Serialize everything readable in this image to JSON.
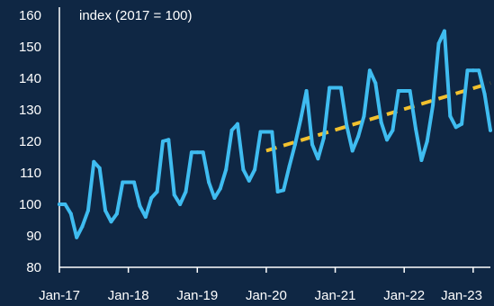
{
  "chart_data": {
    "type": "line",
    "title": "",
    "unit_label": "index (2017 = 100)",
    "xlabel": "",
    "ylabel": "",
    "ylim": [
      80,
      160
    ],
    "y_ticks": [
      "80",
      "90",
      "100",
      "110",
      "120",
      "130",
      "140",
      "150",
      "160"
    ],
    "x_ticks": [
      "Jan-17",
      "Jan-18",
      "Jan-19",
      "Jan-20",
      "Jan-21",
      "Jan-22",
      "Jan-23"
    ],
    "grid": false,
    "legend": "none",
    "colors": {
      "background": "#0f2744",
      "series": "#3fbcf0",
      "trend": "#f2c12e",
      "axis": "#ffffff"
    },
    "series": [
      {
        "values": [
          100,
          100,
          97,
          89.5,
          93,
          98,
          113.5,
          111.5,
          98,
          94.5,
          97,
          107,
          107,
          107,
          99.5,
          96,
          102,
          104,
          120,
          120.5,
          103,
          100,
          104,
          116.5,
          116.5,
          116.5,
          107,
          102,
          105,
          111,
          123.5,
          125.5,
          111,
          107.5,
          111,
          123,
          123,
          123,
          104,
          104.5,
          112,
          119,
          127,
          136,
          119,
          114.5,
          121,
          137,
          137,
          137,
          125,
          117,
          121.5,
          128,
          142.5,
          138.5,
          126,
          120.5,
          123.5,
          136,
          136,
          136,
          124,
          114,
          120,
          131.5,
          151,
          155,
          128,
          124.5,
          125.5,
          142.5,
          142.5,
          142.5,
          135,
          123.5
        ]
      },
      {
        "style": "dashed",
        "x_start_index": 36,
        "x_end_index": 75,
        "y_start": 117,
        "y_end": 138.5
      }
    ]
  }
}
